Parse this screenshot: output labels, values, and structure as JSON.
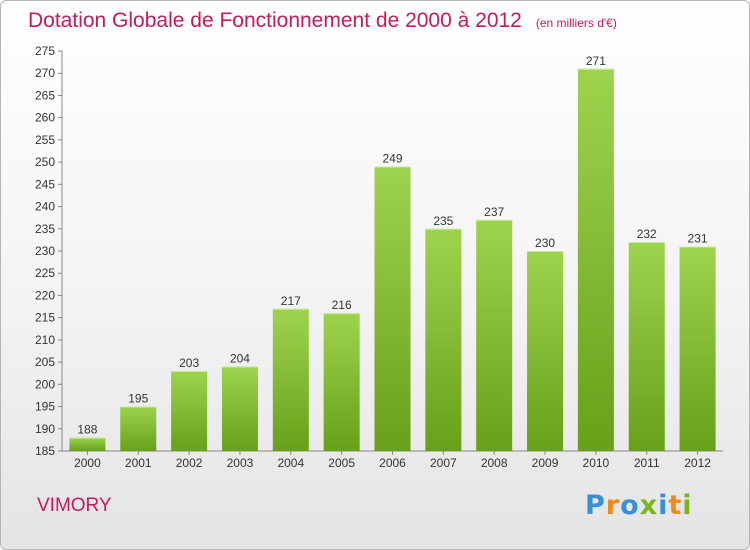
{
  "title": "Dotation Globale de Fonctionnement de 2000 à 2012",
  "unit_note": "(en milliers d'€)",
  "commune": "VIMORY",
  "logo": {
    "text": "Proxiti",
    "colors": [
      "#3a8fd8",
      "#f08a1c",
      "#3a8fd8",
      "#7ab51d",
      "#3a8fd8",
      "#f08a1c",
      "#7ab51d"
    ]
  },
  "colors": {
    "title": "#c8195c",
    "bar_light": "#9ed34e",
    "bar_dark": "#68a01a"
  },
  "chart_data": {
    "type": "bar",
    "title": "Dotation Globale de Fonctionnement de 2000 à 2012",
    "xlabel": "",
    "ylabel": "",
    "categories": [
      "2000",
      "2001",
      "2002",
      "2003",
      "2004",
      "2005",
      "2006",
      "2007",
      "2008",
      "2009",
      "2010",
      "2011",
      "2012"
    ],
    "values": [
      188,
      195,
      203,
      204,
      217,
      216,
      249,
      235,
      237,
      230,
      271,
      232,
      231
    ],
    "ylim": [
      185,
      275
    ],
    "yticks": [
      185,
      190,
      195,
      200,
      205,
      210,
      215,
      220,
      225,
      230,
      235,
      240,
      245,
      250,
      255,
      260,
      265,
      270,
      275
    ],
    "grid": false,
    "data_labels": true
  }
}
